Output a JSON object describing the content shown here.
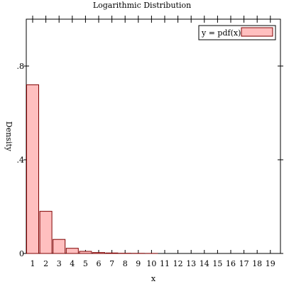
{
  "chart_data": {
    "type": "bar",
    "title": "Logarithmic Distribution",
    "xlabel": "x",
    "ylabel": "Density",
    "ylim": [
      0,
      1.0
    ],
    "y_ticks": [
      0,
      0.4,
      0.8
    ],
    "y_tick_labels": [
      "0",
      ".4",
      ".8"
    ],
    "categories": [
      "1",
      "2",
      "3",
      "4",
      "5",
      "6",
      "7",
      "8",
      "9",
      "10",
      "11",
      "12",
      "13",
      "14",
      "15",
      "16",
      "17",
      "18",
      "19"
    ],
    "series": [
      {
        "name": "y = pdf(x)",
        "values": [
          0.72,
          0.18,
          0.06,
          0.022,
          0.009,
          0.004,
          0.002,
          0.001,
          0.0005,
          0.0002,
          0.0001,
          0.0001,
          0,
          0,
          0,
          0,
          0,
          0,
          0
        ]
      }
    ],
    "legend": {
      "position": "top-right",
      "label": "y = pdf(x)"
    },
    "colors": {
      "bar_fill": "#ffbfbf",
      "bar_stroke": "#7f0000"
    },
    "grid": false
  }
}
